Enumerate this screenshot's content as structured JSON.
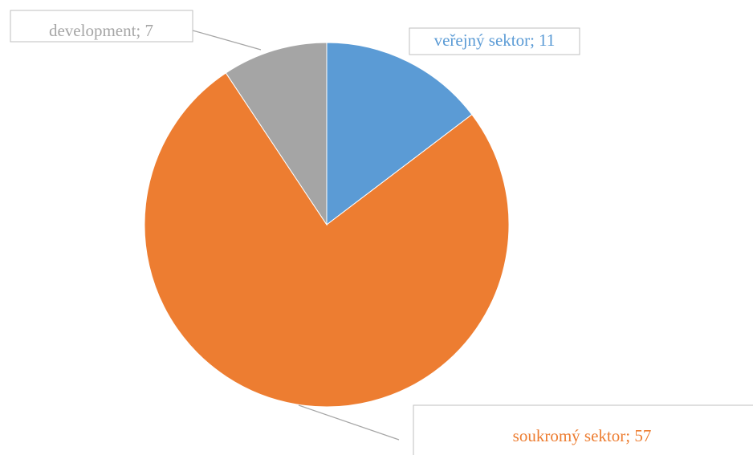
{
  "chart_data": {
    "type": "pie",
    "values": [
      11,
      57,
      7
    ],
    "value_labels": [
      "veřejný sektor; 11",
      "soukromý sektor; 57",
      "development; 7"
    ],
    "colors": [
      "#5b9bd5",
      "#ed7d31",
      "#a5a5a5"
    ]
  }
}
